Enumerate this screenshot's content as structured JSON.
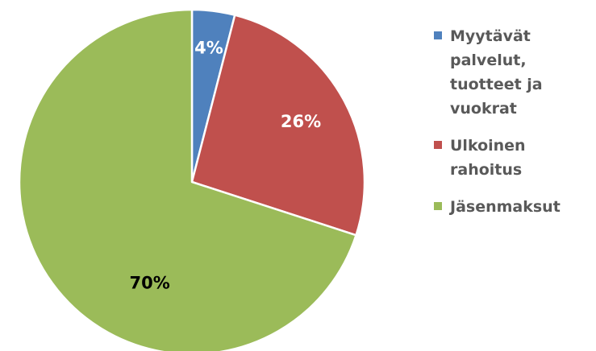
{
  "chart_data": {
    "type": "pie",
    "categories": [
      "Myytävät palvelut, tuotteet ja vuokrat",
      "Ulkoinen rahoitus",
      "Jäsenmaksut"
    ],
    "values": [
      4,
      26,
      70
    ],
    "data_labels": [
      "4%",
      "26%",
      "70%"
    ],
    "colors": [
      "#4f81bd",
      "#c0504d",
      "#9bbb59"
    ],
    "label_colors": [
      "#ffffff",
      "#ffffff",
      "#000000"
    ],
    "legend_position": "right",
    "slice_border_color": "#ffffff",
    "start_angle": "12 o'clock, clockwise"
  },
  "legend": {
    "items": [
      {
        "label": "Myytävät palvelut, tuotteet ja vuokrat",
        "color": "#4f81bd"
      },
      {
        "label": "Ulkoinen rahoitus",
        "color": "#c0504d"
      },
      {
        "label": "Jäsenmaksut",
        "color": "#9bbb59"
      }
    ]
  }
}
